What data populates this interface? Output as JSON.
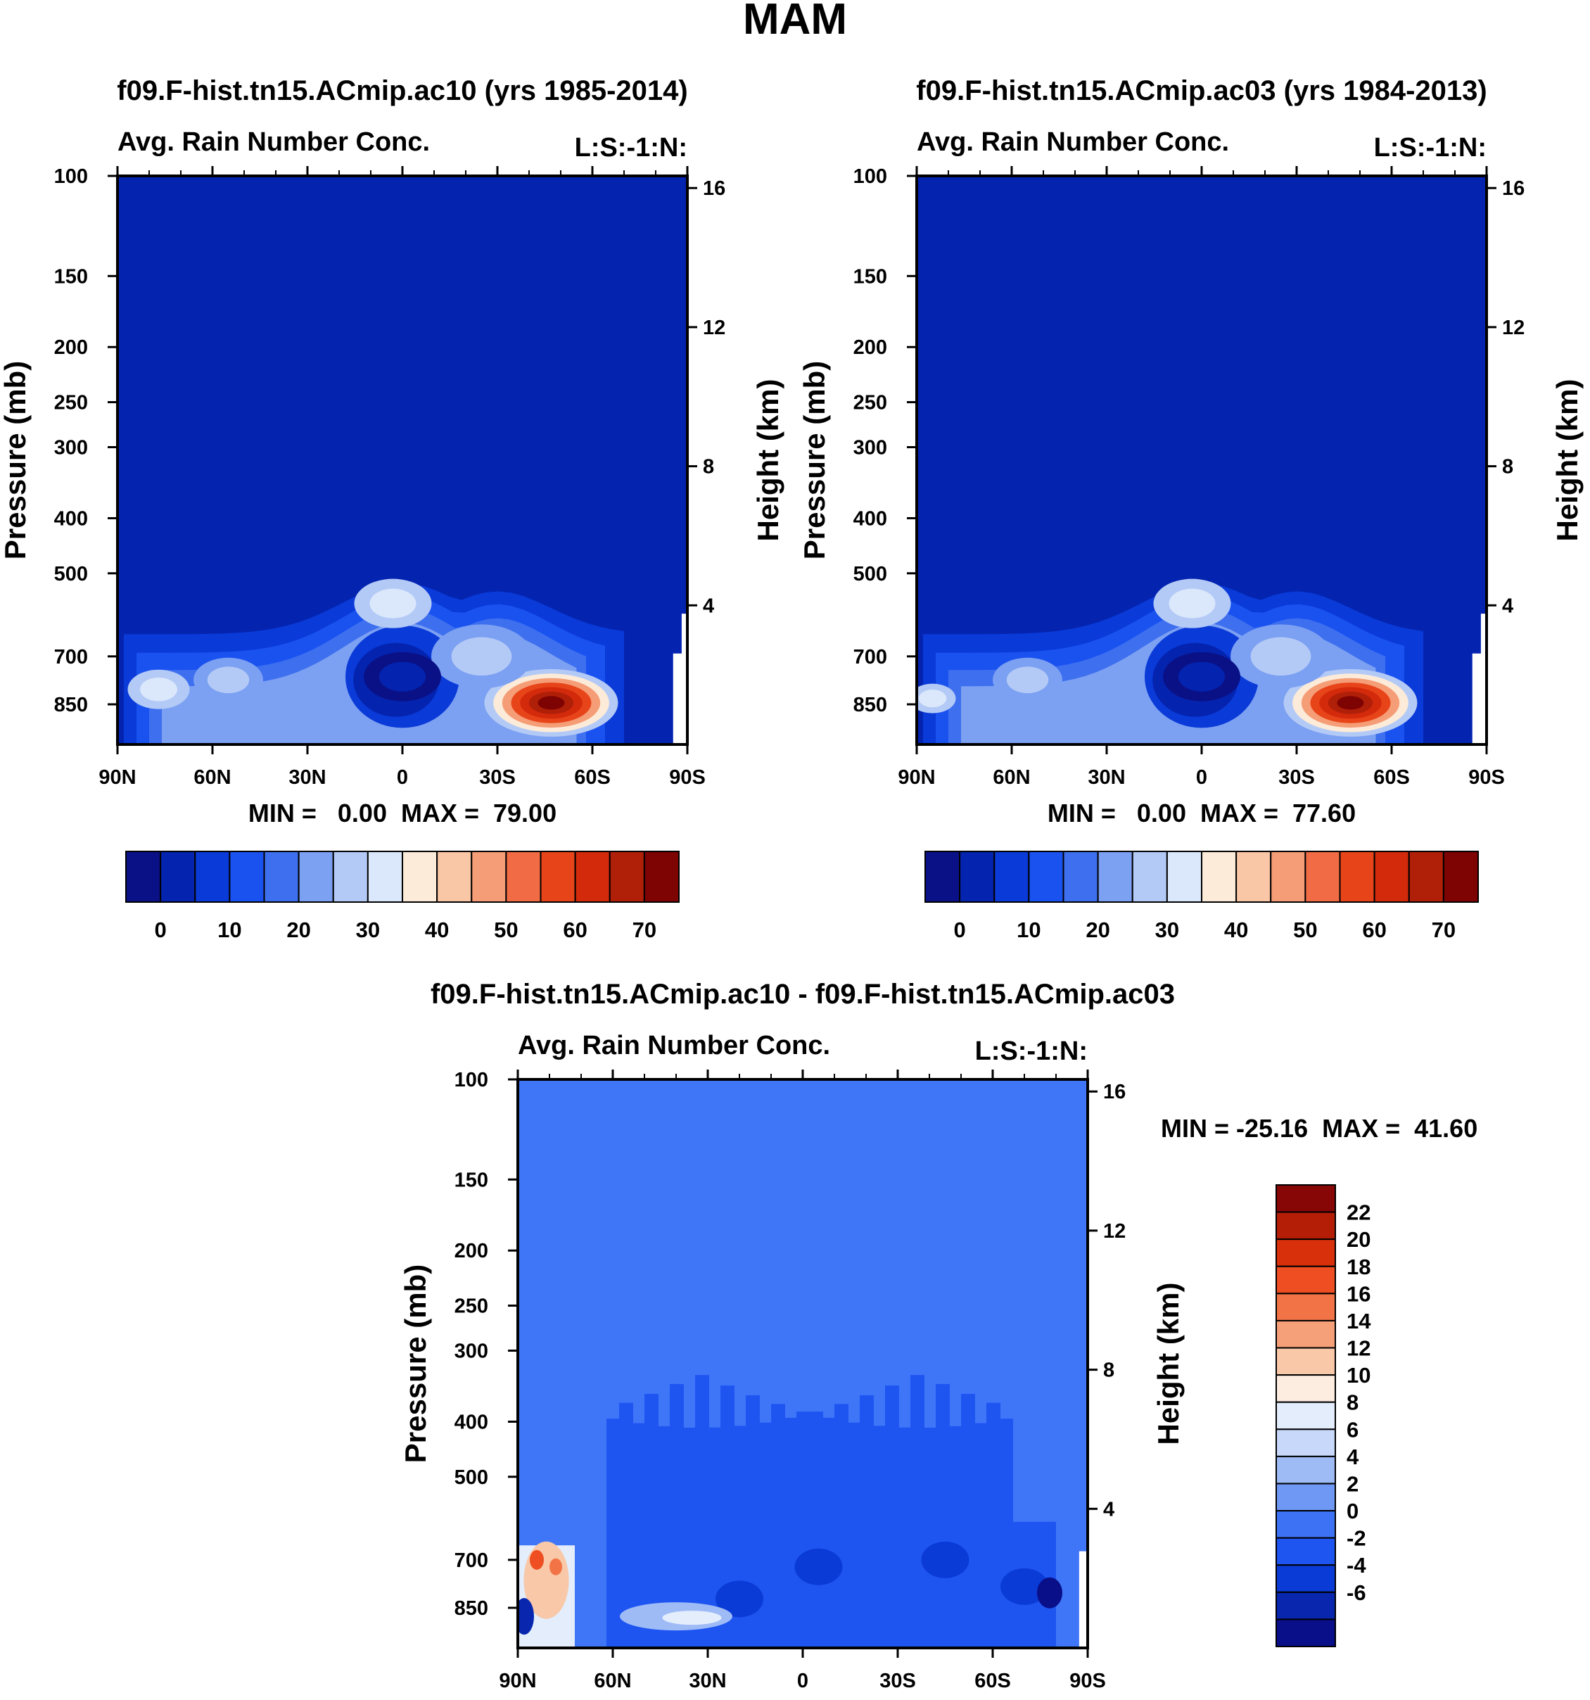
{
  "page_title": "MAM",
  "colors": {
    "abs_scale": [
      "#0a1187",
      "#0424b0",
      "#0a3ad8",
      "#1a52f0",
      "#3d6fef",
      "#7ca0f2",
      "#b4caf6",
      "#dbe8fb",
      "#fcebd8",
      "#f9c6a6",
      "#f59d76",
      "#f16c44",
      "#e8441a",
      "#d42a0c",
      "#b01f08",
      "#7e0303"
    ],
    "diff_scale": [
      "#090e89",
      "#0827ae",
      "#0b3bd6",
      "#1e55f1",
      "#3e72f5",
      "#6f98f4",
      "#9fbbf6",
      "#c7d8fa",
      "#e3edfc",
      "#fdece0",
      "#f8c8a8",
      "#f6a07a",
      "#f27446",
      "#ee4e21",
      "#d9300c",
      "#b41e07",
      "#870606"
    ],
    "diff_background": "#3f76f8"
  },
  "panels": [
    {
      "title": "f09.F-hist.tn15.ACmip.ac10 (yrs 1985-2014)",
      "left_label": "Avg. Rain Number Conc.",
      "right_label": "L:S:-1:N:",
      "min_max": "MIN =   0.00  MAX =  79.00"
    },
    {
      "title": "f09.F-hist.tn15.ACmip.ac03 (yrs 1984-2013)",
      "left_label": "Avg. Rain Number Conc.",
      "right_label": "L:S:-1:N:",
      "min_max": "MIN =   0.00  MAX =  77.60"
    },
    {
      "title": "f09.F-hist.tn15.ACmip.ac10 - f09.F-hist.tn15.ACmip.ac03",
      "left_label": "Avg. Rain Number Conc.",
      "right_label": "L:S:-1:N:",
      "min_max": "MIN = -25.16  MAX =  41.60"
    }
  ],
  "chart_data": [
    {
      "type": "heatmap",
      "title": "f09.F-hist.tn15.ACmip.ac10 (yrs 1985-2014)",
      "subtitle_left": "Avg. Rain Number Conc.",
      "subtitle_right": "L:S:-1:N:",
      "ylabel": "Pressure (mb)",
      "y2label": "Height (km)",
      "x_ticks": [
        "90N",
        "60N",
        "30N",
        "0",
        "30S",
        "60S",
        "90S"
      ],
      "y_ticks": [
        "100",
        "150",
        "200",
        "250",
        "300",
        "400",
        "500",
        "700",
        "850"
      ],
      "y2_ticks": [
        "16",
        "12",
        "8",
        "4"
      ],
      "min": 0.0,
      "max": 79.0,
      "blobs": [
        {
          "lat": 3,
          "p": 565,
          "level": 7,
          "spread": 1.0
        },
        {
          "lat": -47,
          "p": 845,
          "level": 15,
          "spread": 1.0
        },
        {
          "lat": -25,
          "p": 700,
          "level": 6,
          "spread": 1.3
        },
        {
          "lat": 77,
          "p": 800,
          "level": 7,
          "spread": 0.8
        },
        {
          "lat": 55,
          "p": 770,
          "level": 6,
          "spread": 0.9
        },
        {
          "lat": 0,
          "p": 760,
          "level": 1,
          "spread": 1.0
        }
      ]
    },
    {
      "type": "heatmap",
      "title": "f09.F-hist.tn15.ACmip.ac03 (yrs 1984-2013)",
      "subtitle_left": "Avg. Rain Number Conc.",
      "subtitle_right": "L:S:-1:N:",
      "ylabel": "Pressure (mb)",
      "y2label": "Height (km)",
      "x_ticks": [
        "90N",
        "60N",
        "30N",
        "0",
        "30S",
        "60S",
        "90S"
      ],
      "y_ticks": [
        "100",
        "150",
        "200",
        "250",
        "300",
        "400",
        "500",
        "700",
        "850"
      ],
      "y2_ticks": [
        "16",
        "12",
        "8",
        "4"
      ],
      "min": 0.0,
      "max": 77.6,
      "blobs": [
        {
          "lat": 3,
          "p": 565,
          "level": 7,
          "spread": 1.0
        },
        {
          "lat": -47,
          "p": 845,
          "level": 15,
          "spread": 1.0
        },
        {
          "lat": -25,
          "p": 700,
          "level": 6,
          "spread": 1.3
        },
        {
          "lat": 85,
          "p": 830,
          "level": 7,
          "spread": 0.6
        },
        {
          "lat": 55,
          "p": 770,
          "level": 6,
          "spread": 0.9
        },
        {
          "lat": 0,
          "p": 760,
          "level": 1,
          "spread": 1.0
        }
      ]
    },
    {
      "type": "heatmap",
      "title": "f09.F-hist.tn15.ACmip.ac10 - f09.F-hist.tn15.ACmip.ac03",
      "subtitle_left": "Avg. Rain Number Conc.",
      "subtitle_right": "L:S:-1:N:",
      "ylabel": "Pressure (mb)",
      "y2label": "Height (km)",
      "x_ticks": [
        "90N",
        "60N",
        "30N",
        "0",
        "30S",
        "60S",
        "90S"
      ],
      "y_ticks": [
        "100",
        "150",
        "200",
        "250",
        "300",
        "400",
        "500",
        "700",
        "850"
      ],
      "y2_ticks": [
        "16",
        "12",
        "8",
        "4"
      ],
      "min": -25.16,
      "max": 41.6,
      "colorbar_levels": [
        22,
        20,
        18,
        16,
        14,
        12,
        10,
        8,
        6,
        4,
        2,
        0,
        -2,
        -4,
        -6
      ]
    }
  ],
  "colorbar_abs": {
    "labels": [
      "0",
      "10",
      "20",
      "30",
      "40",
      "50",
      "60",
      "70"
    ]
  }
}
